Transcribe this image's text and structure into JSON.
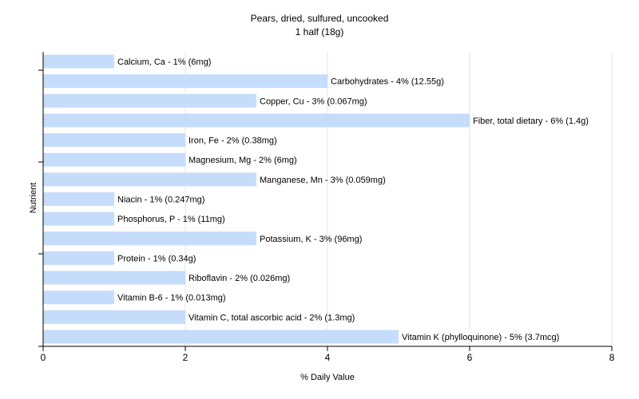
{
  "chart_data": {
    "type": "bar",
    "orientation": "horizontal",
    "title": "Pears, dried, sulfured, uncooked",
    "subtitle": "1 half (18g)",
    "xlabel": "% Daily Value",
    "ylabel": "Nutrient",
    "xlim": [
      0,
      8
    ],
    "xticks": [
      0,
      2,
      4,
      6,
      8
    ],
    "grid": true,
    "bar_color": "#c6dcfb",
    "categories": [
      "Calcium, Ca",
      "Carbohydrates",
      "Copper, Cu",
      "Fiber, total dietary",
      "Iron, Fe",
      "Magnesium, Mg",
      "Manganese, Mn",
      "Niacin",
      "Phosphorus, P",
      "Potassium, K",
      "Protein",
      "Riboflavin",
      "Vitamin B-6",
      "Vitamin C, total ascorbic acid",
      "Vitamin K (phylloquinone)"
    ],
    "values": [
      1,
      4,
      3,
      6,
      2,
      2,
      3,
      1,
      1,
      3,
      1,
      2,
      1,
      2,
      5
    ],
    "labels": [
      "Calcium, Ca - 1% (6mg)",
      "Carbohydrates - 4% (12.55g)",
      "Copper, Cu - 3% (0.067mg)",
      "Fiber, total dietary - 6% (1.4g)",
      "Iron, Fe - 2% (0.38mg)",
      "Magnesium, Mg - 2% (6mg)",
      "Manganese, Mn - 3% (0.059mg)",
      "Niacin - 1% (0.247mg)",
      "Phosphorus, P - 1% (11mg)",
      "Potassium, K - 3% (96mg)",
      "Protein - 1% (0.34g)",
      "Riboflavin - 2% (0.026mg)",
      "Vitamin B-6 - 1% (0.013mg)",
      "Vitamin C, total ascorbic acid - 2% (1.3mg)",
      "Vitamin K (phylloquinone) - 5% (3.7mcg)"
    ]
  }
}
